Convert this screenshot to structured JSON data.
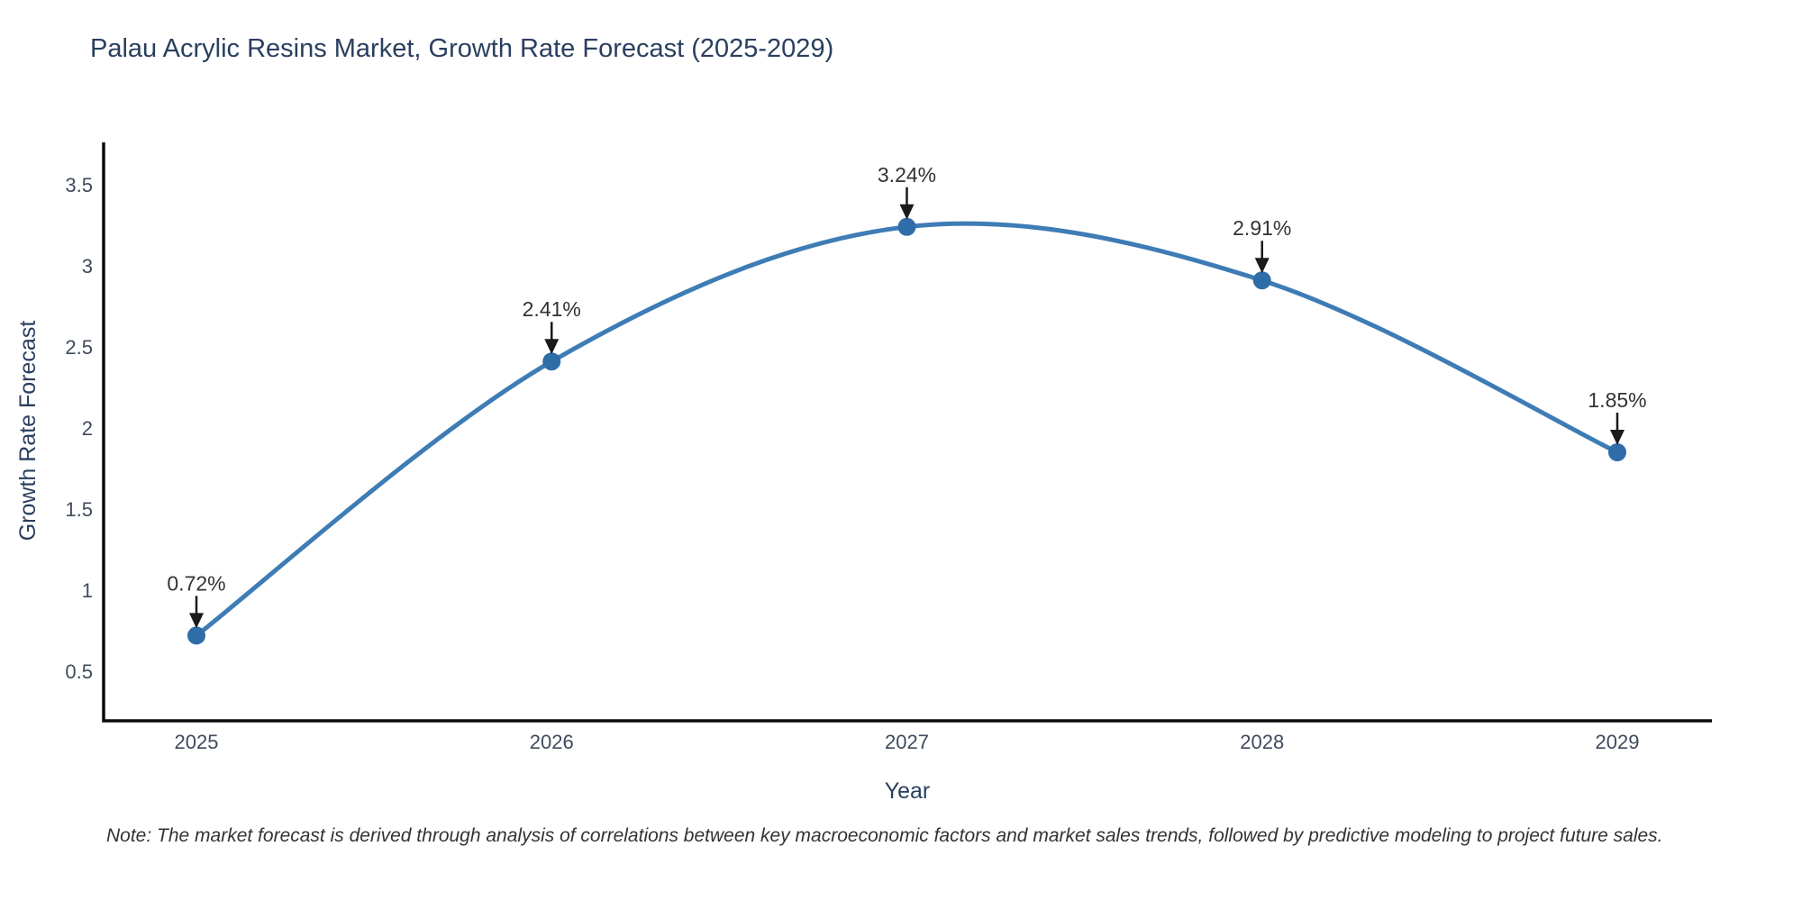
{
  "page": {
    "note": "Note: The market forecast is derived through analysis of correlations between key macroeconomic factors and market sales trends, followed by predictive modeling to project future sales."
  },
  "chart_data": {
    "type": "line",
    "title": "Palau Acrylic Resins Market, Growth Rate Forecast (2025-2029)",
    "categories": [
      "2025",
      "2026",
      "2027",
      "2028",
      "2029"
    ],
    "x": [
      2025,
      2026,
      2027,
      2028,
      2029
    ],
    "values": [
      0.72,
      2.41,
      3.24,
      2.91,
      1.85
    ],
    "point_labels": [
      "0.72%",
      "2.41%",
      "3.24%",
      "2.91%",
      "1.85%"
    ],
    "xlabel": "Year",
    "ylabel": "Growth Rate Forecast",
    "yticks": [
      0.5,
      1,
      1.5,
      2,
      2.5,
      3,
      3.5
    ],
    "ylim": [
      0.19,
      3.75
    ],
    "grid": false,
    "legend": false,
    "curve": "spline",
    "colors": {
      "line": "#3E7CB5",
      "marker": "#2F6DA8",
      "axis": "#0b0b0b",
      "arrow": "#1a1a1a",
      "tick_label": "#3f4a5c",
      "axis_title": "#2a3f5f",
      "title": "#2a3f5f",
      "annotation": "#333333",
      "background": "#ffffff"
    }
  }
}
